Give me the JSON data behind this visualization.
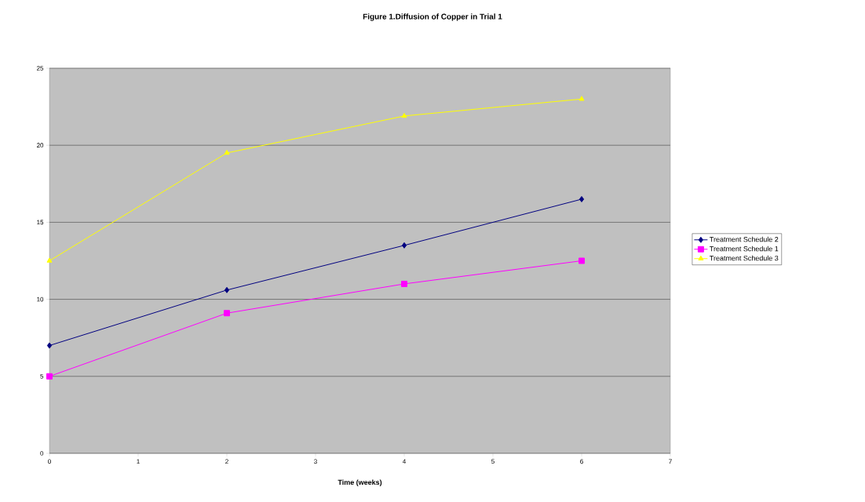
{
  "chart_data": {
    "type": "line",
    "title": "Figure 1.Diffusion of Copper in Trial 1",
    "xlabel": "Time (weeks)",
    "x": [
      0,
      2,
      4,
      6
    ],
    "series": [
      {
        "name": "Treatment Schedule 2",
        "color": "#000080",
        "marker": "diamond",
        "values": [
          7,
          10.6,
          13.5,
          16.5
        ]
      },
      {
        "name": "Treatment Schedule 1",
        "color": "#ff00ff",
        "marker": "square",
        "values": [
          5,
          9.1,
          11,
          12.5
        ]
      },
      {
        "name": "Treatment Schedule 3",
        "color": "#ffff00",
        "marker": "triangle",
        "values": [
          12.5,
          19.5,
          21.9,
          23
        ]
      }
    ],
    "xlim": [
      0,
      7
    ],
    "xticks": [
      0,
      1,
      2,
      3,
      4,
      5,
      6,
      7
    ],
    "ylim": [
      0,
      25
    ],
    "yticks": [
      0,
      5,
      10,
      15,
      20,
      25
    ],
    "grid": "y",
    "legend": "right",
    "line_style": "solid"
  }
}
